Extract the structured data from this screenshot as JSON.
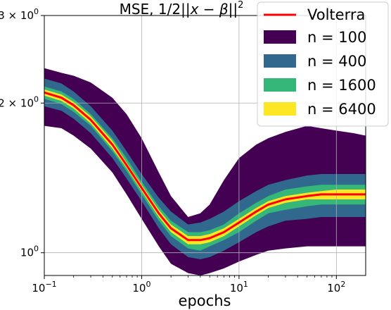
{
  "chart_data": {
    "type": "area",
    "title_prefix": "MSE, 1/2||",
    "title_math": "x − β",
    "title_suffix": "||",
    "title_sup": "2",
    "xlabel": "epochs",
    "ylabel": "",
    "x_scale": "log",
    "y_scale": "log",
    "xlim": [
      0.1,
      200
    ],
    "ylim": [
      0.9,
      3.0
    ],
    "grid": true,
    "legend_position": "top-right",
    "x_ticks": [
      {
        "value": 0.1,
        "base": "10",
        "exp": "−1"
      },
      {
        "value": 1,
        "base": "10",
        "exp": "0"
      },
      {
        "value": 10,
        "base": "10",
        "exp": "1"
      },
      {
        "value": 100,
        "base": "10",
        "exp": "2"
      }
    ],
    "y_ticks": [
      {
        "value": 3,
        "label": "3 × 10",
        "exp": "0"
      },
      {
        "value": 2,
        "label": "2 × 10",
        "exp": "0"
      },
      {
        "value": 1,
        "label": "10",
        "exp": "0"
      }
    ],
    "x": [
      0.1,
      0.15,
      0.2,
      0.3,
      0.5,
      0.7,
      1.0,
      1.5,
      2.0,
      3.0,
      4.0,
      5.0,
      7.0,
      10,
      15,
      20,
      30,
      50,
      70,
      100,
      150,
      200
    ],
    "median": [
      2.1,
      2.05,
      1.98,
      1.85,
      1.65,
      1.5,
      1.35,
      1.2,
      1.12,
      1.06,
      1.06,
      1.07,
      1.1,
      1.15,
      1.21,
      1.25,
      1.28,
      1.3,
      1.31,
      1.31,
      1.31,
      1.31
    ],
    "series": [
      {
        "name": "n = 100",
        "color": "#440154",
        "lower": [
          1.8,
          1.78,
          1.72,
          1.62,
          1.45,
          1.31,
          1.17,
          1.03,
          0.95,
          0.91,
          0.9,
          0.91,
          0.93,
          0.96,
          0.99,
          1.01,
          1.02,
          1.03,
          1.03,
          1.03,
          1.03,
          1.03
        ],
        "upper": [
          2.35,
          2.3,
          2.27,
          2.2,
          2.05,
          1.9,
          1.7,
          1.45,
          1.3,
          1.18,
          1.2,
          1.25,
          1.4,
          1.55,
          1.65,
          1.7,
          1.75,
          1.8,
          1.78,
          1.76,
          1.74,
          1.72
        ]
      },
      {
        "name": "n = 400",
        "color": "#31688e",
        "lower": [
          1.97,
          1.93,
          1.86,
          1.74,
          1.55,
          1.41,
          1.27,
          1.12,
          1.04,
          0.98,
          0.97,
          0.98,
          1.01,
          1.05,
          1.1,
          1.13,
          1.16,
          1.17,
          1.18,
          1.18,
          1.18,
          1.18
        ],
        "upper": [
          2.24,
          2.19,
          2.11,
          1.97,
          1.76,
          1.6,
          1.44,
          1.29,
          1.21,
          1.14,
          1.15,
          1.17,
          1.21,
          1.27,
          1.33,
          1.37,
          1.4,
          1.43,
          1.44,
          1.44,
          1.44,
          1.44
        ]
      },
      {
        "name": "n = 1600",
        "color": "#35b779",
        "lower": [
          2.04,
          1.99,
          1.92,
          1.8,
          1.6,
          1.46,
          1.31,
          1.16,
          1.08,
          1.02,
          1.01,
          1.03,
          1.06,
          1.1,
          1.16,
          1.2,
          1.22,
          1.24,
          1.25,
          1.25,
          1.25,
          1.25
        ],
        "upper": [
          2.16,
          2.11,
          2.04,
          1.9,
          1.7,
          1.55,
          1.39,
          1.24,
          1.16,
          1.1,
          1.1,
          1.11,
          1.14,
          1.2,
          1.26,
          1.3,
          1.34,
          1.36,
          1.37,
          1.37,
          1.37,
          1.37
        ]
      },
      {
        "name": "n = 6400",
        "color": "#fde725",
        "lower": [
          2.07,
          2.02,
          1.95,
          1.82,
          1.62,
          1.48,
          1.33,
          1.18,
          1.1,
          1.04,
          1.04,
          1.05,
          1.08,
          1.13,
          1.19,
          1.23,
          1.26,
          1.28,
          1.28,
          1.28,
          1.28,
          1.28
        ],
        "upper": [
          2.13,
          2.08,
          2.01,
          1.88,
          1.68,
          1.52,
          1.37,
          1.22,
          1.14,
          1.08,
          1.08,
          1.09,
          1.12,
          1.17,
          1.23,
          1.27,
          1.3,
          1.32,
          1.33,
          1.34,
          1.34,
          1.34
        ]
      }
    ],
    "line_series": {
      "name": "Volterra",
      "color": "#ff0000"
    }
  }
}
